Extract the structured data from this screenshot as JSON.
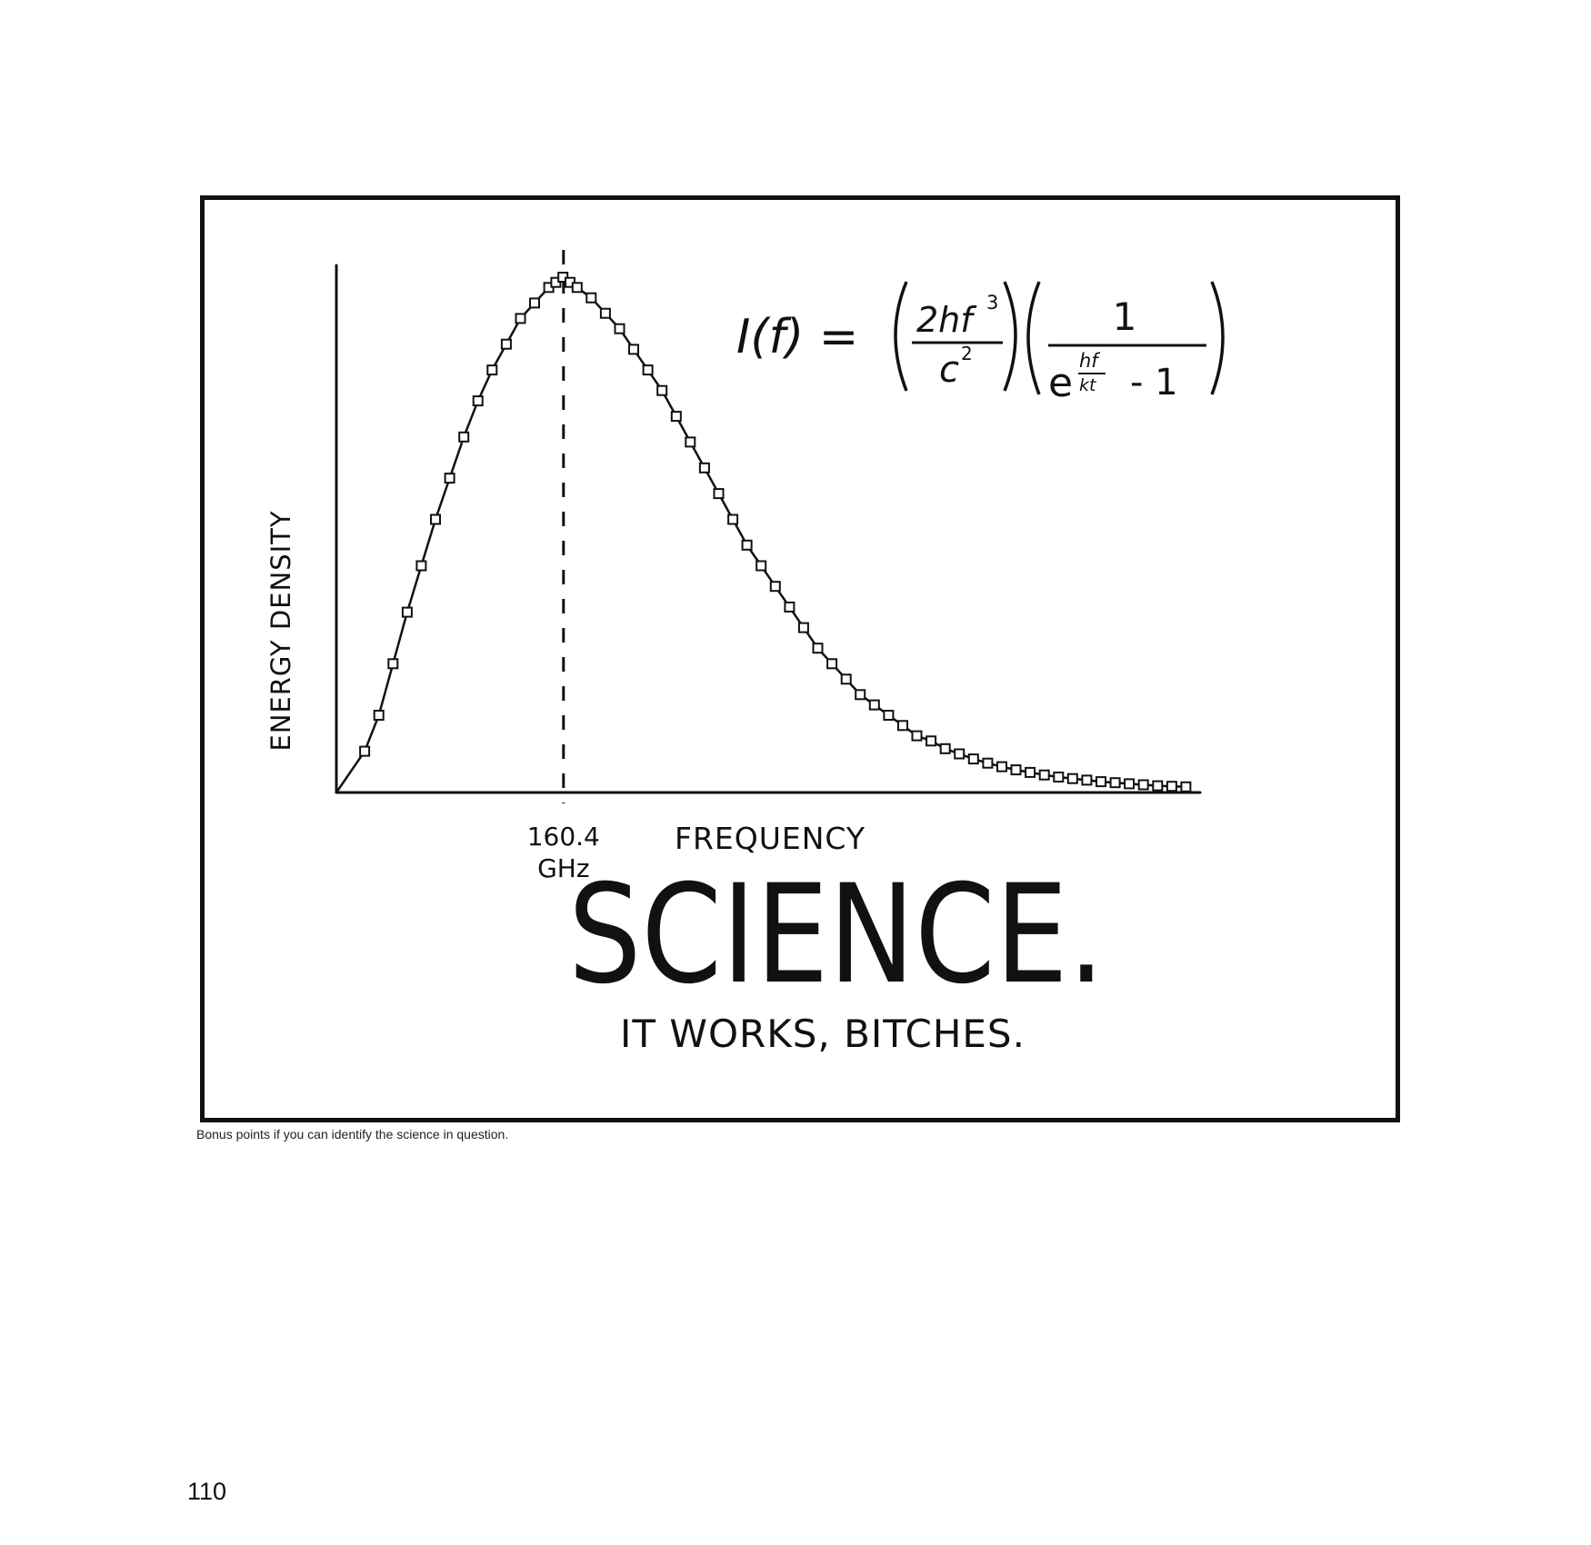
{
  "comic": {
    "formula": {
      "lhs": "I(f) =",
      "numerator_left": "2hf",
      "exp_left": "3",
      "denominator_left": "c",
      "exp_c": "2",
      "numerator_right": "1",
      "base_e": "e",
      "exp_num": "hf",
      "exp_den": "kt",
      "minus_one": "- 1"
    },
    "headline": "SCIENCE.",
    "subline": "IT WORKS, BITCHES."
  },
  "caption": "Bonus points if you can identify the science in question.",
  "page_number": "110",
  "chart_data": {
    "type": "line",
    "xlabel": "FREQUENCY",
    "ylabel": "ENERGY DENSITY",
    "peak_label": [
      "160.4",
      "GHz"
    ],
    "peak_x": 160.4,
    "axis_ticks": "none",
    "marker": "square",
    "series": [
      {
        "x": [
          20,
          30,
          40,
          50,
          60,
          70,
          80,
          90,
          100,
          110,
          120,
          130,
          140,
          150,
          155,
          160,
          165,
          170,
          180,
          190,
          200,
          210,
          220,
          230,
          240,
          250,
          260,
          270,
          280,
          290,
          300,
          310,
          320,
          330,
          340,
          350,
          360,
          370,
          380,
          390,
          400,
          410,
          420,
          430,
          440,
          450,
          460,
          470,
          480,
          490,
          500,
          510,
          520,
          530,
          540,
          550,
          560,
          570,
          580,
          590,
          600
        ],
        "y": [
          0.08,
          0.15,
          0.25,
          0.35,
          0.44,
          0.53,
          0.61,
          0.69,
          0.76,
          0.82,
          0.87,
          0.92,
          0.95,
          0.98,
          0.99,
          1.0,
          0.99,
          0.98,
          0.96,
          0.93,
          0.9,
          0.86,
          0.82,
          0.78,
          0.73,
          0.68,
          0.63,
          0.58,
          0.53,
          0.48,
          0.44,
          0.4,
          0.36,
          0.32,
          0.28,
          0.25,
          0.22,
          0.19,
          0.17,
          0.15,
          0.13,
          0.11,
          0.1,
          0.085,
          0.075,
          0.065,
          0.057,
          0.05,
          0.044,
          0.039,
          0.034,
          0.03,
          0.027,
          0.024,
          0.021,
          0.019,
          0.017,
          0.015,
          0.013,
          0.012,
          0.011
        ]
      }
    ]
  }
}
